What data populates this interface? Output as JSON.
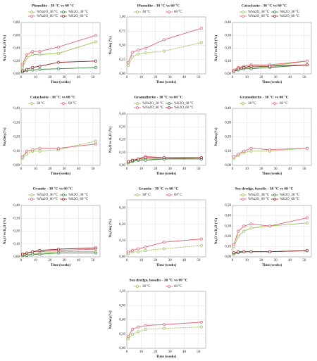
{
  "chart_data": [
    {
      "type": "line",
      "title": "Phonolite - 38 °C vs 60 °C",
      "x_label": "Time (weeks)",
      "y_label": "Na₂O vs K₂O (%)",
      "x": [
        1,
        4,
        8,
        13,
        26,
        52
      ],
      "xlim": [
        0,
        55
      ],
      "xticks": [
        0,
        10,
        20,
        30,
        40,
        50
      ],
      "ylim": [
        0,
        0.8
      ],
      "yticks": [
        {
          "value": 0,
          "label": "0,00"
        },
        {
          "value": 0.2,
          "label": "0,20"
        },
        {
          "value": 0.4,
          "label": "0,40"
        },
        {
          "value": 0.6,
          "label": "0,60"
        },
        {
          "value": 0.8,
          "label": "0,80"
        }
      ],
      "series": [
        {
          "name": "%Na2O_38 °C",
          "color": "#92c050",
          "values": [
            0.1,
            0.25,
            0.3,
            0.3,
            0.32,
            0.5
          ]
        },
        {
          "name": "%K2O_38 °C",
          "color": "#2e7d32",
          "values": [
            0.03,
            0.05,
            0.06,
            0.07,
            0.08,
            0.1
          ]
        },
        {
          "name": "%Na2O_60 °C",
          "color": "#e06070",
          "values": [
            0.15,
            0.3,
            0.35,
            0.35,
            0.42,
            0.6
          ]
        },
        {
          "name": "%K2O_60 °C",
          "color": "#8b1a1a",
          "values": [
            0.05,
            0.07,
            0.1,
            0.12,
            0.18,
            0.2
          ]
        }
      ]
    },
    {
      "type": "line",
      "title": "Phonolite - 38 °C vs 60 °C",
      "x_label": "Time (weeks)",
      "y_label": "Na₂Oeq (%)",
      "x": [
        1,
        4,
        8,
        13,
        26,
        52
      ],
      "xlim": [
        0,
        55
      ],
      "xticks": [
        0,
        10,
        20,
        30,
        40,
        50
      ],
      "ylim": [
        0,
        1
      ],
      "yticks": [
        {
          "value": 0,
          "label": "0,00"
        },
        {
          "value": 0.25,
          "label": "0,25"
        },
        {
          "value": 0.5,
          "label": "0,50"
        },
        {
          "value": 0.75,
          "label": "0,75"
        },
        {
          "value": 1,
          "label": "1,00"
        }
      ],
      "series": [
        {
          "name": "38 °C",
          "color": "#92c050",
          "values": [
            0.15,
            0.3,
            0.35,
            0.37,
            0.4,
            0.55
          ]
        },
        {
          "name": "60 °C",
          "color": "#e06070",
          "values": [
            0.2,
            0.38,
            0.42,
            0.45,
            0.6,
            0.8
          ]
        }
      ]
    },
    {
      "type": "line",
      "title": "Cataclasite - 38 °C vs 60 °C",
      "x_label": "Time (weeks)",
      "y_label": "Na₂O vs K₂O (%)",
      "x": [
        1,
        4,
        8,
        13,
        26,
        52
      ],
      "xlim": [
        0,
        55
      ],
      "xticks": [
        0,
        10,
        20,
        30,
        40,
        50
      ],
      "ylim": [
        0,
        0.4
      ],
      "yticks": [
        {
          "value": 0,
          "label": "0,00"
        },
        {
          "value": 0.1,
          "label": "0,10"
        },
        {
          "value": 0.2,
          "label": "0,20"
        },
        {
          "value": 0.3,
          "label": "0,30"
        },
        {
          "value": 0.4,
          "label": "0,40"
        }
      ],
      "series": [
        {
          "name": "%Na2O_38 °C",
          "color": "#92c050",
          "values": [
            0.02,
            0.04,
            0.05,
            0.05,
            0.06,
            0.1
          ]
        },
        {
          "name": "%K2O_38 °C",
          "color": "#2e7d32",
          "values": [
            0.02,
            0.03,
            0.04,
            0.04,
            0.05,
            0.07
          ]
        },
        {
          "name": "%Na2O_60 °C",
          "color": "#e06070",
          "values": [
            0.03,
            0.05,
            0.06,
            0.07,
            0.07,
            0.1
          ]
        },
        {
          "name": "%K2O_60 °C",
          "color": "#8b1a1a",
          "values": [
            0.02,
            0.04,
            0.05,
            0.06,
            0.06,
            0.07
          ]
        }
      ]
    },
    {
      "type": "line",
      "title": "Cataclasite - 38 °C vs 60 °C",
      "x_label": "Time (weeks)",
      "y_label": "Na₂Oeq (%)",
      "x": [
        1,
        4,
        8,
        13,
        26,
        52
      ],
      "xlim": [
        0,
        55
      ],
      "xticks": [
        0,
        10,
        20,
        30,
        40,
        50
      ],
      "ylim": [
        0,
        0.4
      ],
      "yticks": [
        {
          "value": 0,
          "label": "0,00"
        },
        {
          "value": 0.1,
          "label": "0,10"
        },
        {
          "value": 0.2,
          "label": "0,20"
        },
        {
          "value": 0.3,
          "label": "0,30"
        },
        {
          "value": 0.4,
          "label": "0,40"
        }
      ],
      "series": [
        {
          "name": "38 °C",
          "color": "#92c050",
          "values": [
            0.05,
            0.08,
            0.1,
            0.1,
            0.11,
            0.17
          ]
        },
        {
          "name": "60 °C",
          "color": "#e06070",
          "values": [
            0.06,
            0.1,
            0.11,
            0.12,
            0.12,
            0.15
          ]
        }
      ]
    },
    {
      "type": "line",
      "title": "Granodiorite - 38 °C vs 60 °C",
      "x_label": "Time (weeks)",
      "y_label": "Na₂O vs K₂O (%)",
      "x": [
        1,
        4,
        8,
        13,
        26,
        52
      ],
      "xlim": [
        0,
        55
      ],
      "xticks": [
        0,
        10,
        20,
        30,
        40,
        50
      ],
      "ylim": [
        0,
        0.4
      ],
      "yticks": [
        {
          "value": 0,
          "label": "0,00"
        },
        {
          "value": 0.1,
          "label": "0,10"
        },
        {
          "value": 0.2,
          "label": "0,20"
        },
        {
          "value": 0.3,
          "label": "0,30"
        },
        {
          "value": 0.4,
          "label": "0,40"
        }
      ],
      "series": [
        {
          "name": "%Na2O_38 °C",
          "color": "#92c050",
          "values": [
            0.02,
            0.03,
            0.04,
            0.05,
            0.05,
            0.06
          ]
        },
        {
          "name": "%K2O_38 °C",
          "color": "#2e7d32",
          "values": [
            0.02,
            0.03,
            0.04,
            0.04,
            0.05,
            0.05
          ]
        },
        {
          "name": "%Na2O_60 °C",
          "color": "#e06070",
          "values": [
            0.03,
            0.04,
            0.05,
            0.07,
            0.06,
            0.06
          ]
        },
        {
          "name": "%K2O_60 °C",
          "color": "#8b1a1a",
          "values": [
            0.03,
            0.04,
            0.05,
            0.06,
            0.06,
            0.06
          ]
        }
      ]
    },
    {
      "type": "line",
      "title": "Granodiorite - 38 °C vs 60 °C",
      "x_label": "Time (weeks)",
      "y_label": "Na₂Oeq (%)",
      "x": [
        1,
        4,
        8,
        13,
        26,
        52
      ],
      "xlim": [
        0,
        55
      ],
      "xticks": [
        0,
        10,
        20,
        30,
        40,
        50
      ],
      "ylim": [
        0,
        0.4
      ],
      "yticks": [
        {
          "value": 0,
          "label": "0,00"
        },
        {
          "value": 0.1,
          "label": "0,10"
        },
        {
          "value": 0.2,
          "label": "0,20"
        },
        {
          "value": 0.3,
          "label": "0,30"
        },
        {
          "value": 0.4,
          "label": "0,40"
        }
      ],
      "series": [
        {
          "name": "38 °C",
          "color": "#92c050",
          "values": [
            0.05,
            0.07,
            0.09,
            0.1,
            0.1,
            0.12
          ]
        },
        {
          "name": "60 °C",
          "color": "#e06070",
          "values": [
            0.06,
            0.08,
            0.1,
            0.12,
            0.11,
            0.12
          ]
        }
      ]
    },
    {
      "type": "line",
      "title": "Granite - 38 °C vs 60 °C",
      "x_label": "Time (weeks)",
      "y_label": "Na₂O vs K₂O (%)",
      "x": [
        1,
        4,
        8,
        13,
        26,
        52
      ],
      "xlim": [
        0,
        55
      ],
      "xticks": [
        0,
        10,
        20,
        30,
        40,
        50
      ],
      "ylim": [
        0,
        0.4
      ],
      "yticks": [
        {
          "value": 0,
          "label": "0,00"
        },
        {
          "value": 0.1,
          "label": "0,10"
        },
        {
          "value": 0.2,
          "label": "0,20"
        },
        {
          "value": 0.3,
          "label": "0,30"
        },
        {
          "value": 0.4,
          "label": "0,40"
        }
      ],
      "series": [
        {
          "name": "%Na2O_38 °C",
          "color": "#92c050",
          "values": [
            0.01,
            0.02,
            0.02,
            0.03,
            0.04,
            0.04
          ]
        },
        {
          "name": "%K2O_38 °C",
          "color": "#2e7d32",
          "values": [
            0.01,
            0.01,
            0.02,
            0.02,
            0.03,
            0.03
          ]
        },
        {
          "name": "%Na2O_60 °C",
          "color": "#e06070",
          "values": [
            0.02,
            0.03,
            0.04,
            0.04,
            0.05,
            0.06
          ]
        },
        {
          "name": "%K2O_60 °C",
          "color": "#8b1a1a",
          "values": [
            0.02,
            0.03,
            0.04,
            0.05,
            0.06,
            0.07
          ]
        }
      ]
    },
    {
      "type": "line",
      "title": "Granite - 38 °C vs 60 °C",
      "x_label": "Time (weeks)",
      "y_label": "Na₂Oeq (%)",
      "x": [
        1,
        4,
        8,
        13,
        26,
        52
      ],
      "xlim": [
        0,
        55
      ],
      "xticks": [
        0,
        10,
        20,
        30,
        40,
        50
      ],
      "ylim": [
        0,
        0.35
      ],
      "yticks": [
        {
          "value": 0,
          "label": "0,00"
        },
        {
          "value": 0.1,
          "label": "0,10"
        },
        {
          "value": 0.2,
          "label": "0,20"
        },
        {
          "value": 0.3,
          "label": "0,30"
        }
      ],
      "series": [
        {
          "name": "38° C",
          "color": "#92c050",
          "values": [
            0.02,
            0.03,
            0.03,
            0.04,
            0.05,
            0.07
          ]
        },
        {
          "name": "60° C",
          "color": "#e06070",
          "values": [
            0.03,
            0.04,
            0.05,
            0.06,
            0.09,
            0.11
          ]
        }
      ]
    },
    {
      "type": "line",
      "title": "Sea dredge, basalts - 38 °C vs 60 °C",
      "x_label": "Time (weeks)",
      "y_label": "Na₂O vs K₂O (%)",
      "x": [
        1,
        4,
        8,
        13,
        26,
        52
      ],
      "xlim": [
        0,
        55
      ],
      "xticks": [
        0,
        10,
        20,
        30,
        40,
        50
      ],
      "ylim": [
        0,
        0.5
      ],
      "yticks": [
        {
          "value": 0,
          "label": "0,00"
        },
        {
          "value": 0.1,
          "label": "0,10"
        },
        {
          "value": 0.2,
          "label": "0,20"
        },
        {
          "value": 0.3,
          "label": "0,30"
        },
        {
          "value": 0.4,
          "label": "0,40"
        },
        {
          "value": 0.5,
          "label": "0,50"
        }
      ],
      "series": [
        {
          "name": "%Na2O_38 °C",
          "color": "#92c050",
          "values": [
            0.1,
            0.2,
            0.25,
            0.28,
            0.3,
            0.33
          ]
        },
        {
          "name": "%K2O_38 °C",
          "color": "#2e7d32",
          "values": [
            0.03,
            0.04,
            0.05,
            0.05,
            0.05,
            0.06
          ]
        },
        {
          "name": "%Na2O_60 °C",
          "color": "#e06070",
          "values": [
            0.12,
            0.25,
            0.3,
            0.32,
            0.3,
            0.38
          ]
        },
        {
          "name": "%K2O_60 °C",
          "color": "#8b1a1a",
          "values": [
            0.04,
            0.05,
            0.05,
            0.05,
            0.05,
            0.06
          ]
        }
      ]
    },
    {
      "type": "line",
      "title": "Sea dredge, basalts - 38 °C vs 60 °C",
      "x_label": "Time (weeks)",
      "y_label": "Na₂Oeq (%)",
      "x": [
        1,
        4,
        8,
        13,
        26,
        52
      ],
      "xlim": [
        0,
        55
      ],
      "xticks": [
        0,
        10,
        20,
        30,
        40,
        50
      ],
      "ylim": [
        0,
        1.2
      ],
      "yticks": [
        {
          "value": 0,
          "label": "0,00"
        },
        {
          "value": 0.3,
          "label": "0,30"
        },
        {
          "value": 0.6,
          "label": "0,60"
        },
        {
          "value": 0.9,
          "label": "0,90"
        },
        {
          "value": 1.2,
          "label": "1,20"
        }
      ],
      "series": [
        {
          "name": "38 °C",
          "color": "#92c050",
          "values": [
            0.2,
            0.3,
            0.35,
            0.4,
            0.42,
            0.45
          ]
        },
        {
          "name": "60 °C",
          "color": "#e06070",
          "values": [
            0.25,
            0.4,
            0.45,
            0.48,
            0.5,
            0.55
          ]
        }
      ]
    }
  ]
}
